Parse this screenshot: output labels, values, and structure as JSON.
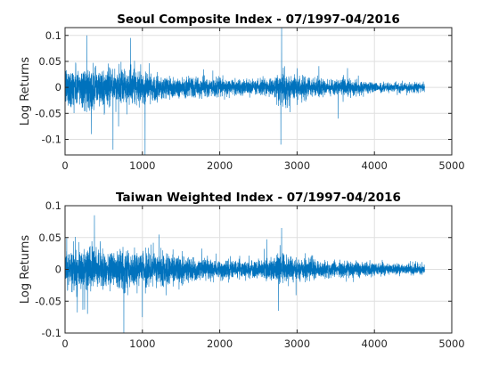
{
  "chart_data": [
    {
      "type": "line",
      "title": "Seoul Composite Index - 07/1997-04/2016",
      "ylabel": "Log Returns",
      "xlabel": "",
      "xlim": [
        0,
        5000
      ],
      "ylim": [
        -0.13,
        0.115
      ],
      "xticks": [
        0,
        1000,
        2000,
        3000,
        4000,
        5000
      ],
      "xtick_labels": [
        "0",
        "1000",
        "2000",
        "3000",
        "4000",
        "5000"
      ],
      "yticks": [
        -0.1,
        -0.05,
        0,
        0.05,
        0.1
      ],
      "ytick_labels": [
        "-0.1",
        "-0.05",
        "0",
        "0.05",
        "0.1"
      ],
      "grid": true,
      "color": "#0072bd",
      "n_points": 4650,
      "volatility_profile": [
        [
          0,
          0.035
        ],
        [
          150,
          0.035
        ],
        [
          400,
          0.032
        ],
        [
          700,
          0.03
        ],
        [
          1000,
          0.025
        ],
        [
          1300,
          0.02
        ],
        [
          1600,
          0.017
        ],
        [
          2000,
          0.015
        ],
        [
          2400,
          0.012
        ],
        [
          2700,
          0.016
        ],
        [
          2800,
          0.03
        ],
        [
          2950,
          0.022
        ],
        [
          3200,
          0.015
        ],
        [
          3500,
          0.012
        ],
        [
          3600,
          0.018
        ],
        [
          3800,
          0.01
        ],
        [
          4200,
          0.008
        ],
        [
          4650,
          0.008
        ]
      ],
      "extremes": [
        {
          "x": 280,
          "y": 0.1
        },
        {
          "x": 340,
          "y": -0.09
        },
        {
          "x": 620,
          "y": -0.12
        },
        {
          "x": 845,
          "y": 0.095
        },
        {
          "x": 1035,
          "y": -0.13
        },
        {
          "x": 2800,
          "y": 0.115
        },
        {
          "x": 2790,
          "y": -0.11
        },
        {
          "x": 3530,
          "y": -0.06
        }
      ]
    },
    {
      "type": "line",
      "title": "Taiwan Weighted Index - 07/1997-04/2016",
      "ylabel": "Log Returns",
      "xlabel": "",
      "xlim": [
        0,
        5000
      ],
      "ylim": [
        -0.1,
        0.1
      ],
      "xticks": [
        0,
        1000,
        2000,
        3000,
        4000,
        5000
      ],
      "xtick_labels": [
        "0",
        "1000",
        "2000",
        "3000",
        "4000",
        "5000"
      ],
      "yticks": [
        -0.1,
        -0.05,
        0,
        0.05,
        0.1
      ],
      "ytick_labels": [
        "-0.1",
        "-0.05",
        "0",
        "0.05",
        "0.1"
      ],
      "grid": true,
      "color": "#0072bd",
      "n_points": 4650,
      "volatility_profile": [
        [
          0,
          0.025
        ],
        [
          300,
          0.028
        ],
        [
          600,
          0.028
        ],
        [
          900,
          0.025
        ],
        [
          1200,
          0.022
        ],
        [
          1500,
          0.018
        ],
        [
          2000,
          0.013
        ],
        [
          2500,
          0.012
        ],
        [
          2800,
          0.022
        ],
        [
          2950,
          0.018
        ],
        [
          3300,
          0.012
        ],
        [
          3800,
          0.01
        ],
        [
          4200,
          0.007
        ],
        [
          4650,
          0.008
        ]
      ],
      "extremes": [
        {
          "x": 380,
          "y": 0.085
        },
        {
          "x": 760,
          "y": -0.1
        },
        {
          "x": 290,
          "y": -0.07
        },
        {
          "x": 2760,
          "y": -0.065
        },
        {
          "x": 2800,
          "y": 0.065
        },
        {
          "x": 1000,
          "y": -0.075
        }
      ]
    }
  ]
}
